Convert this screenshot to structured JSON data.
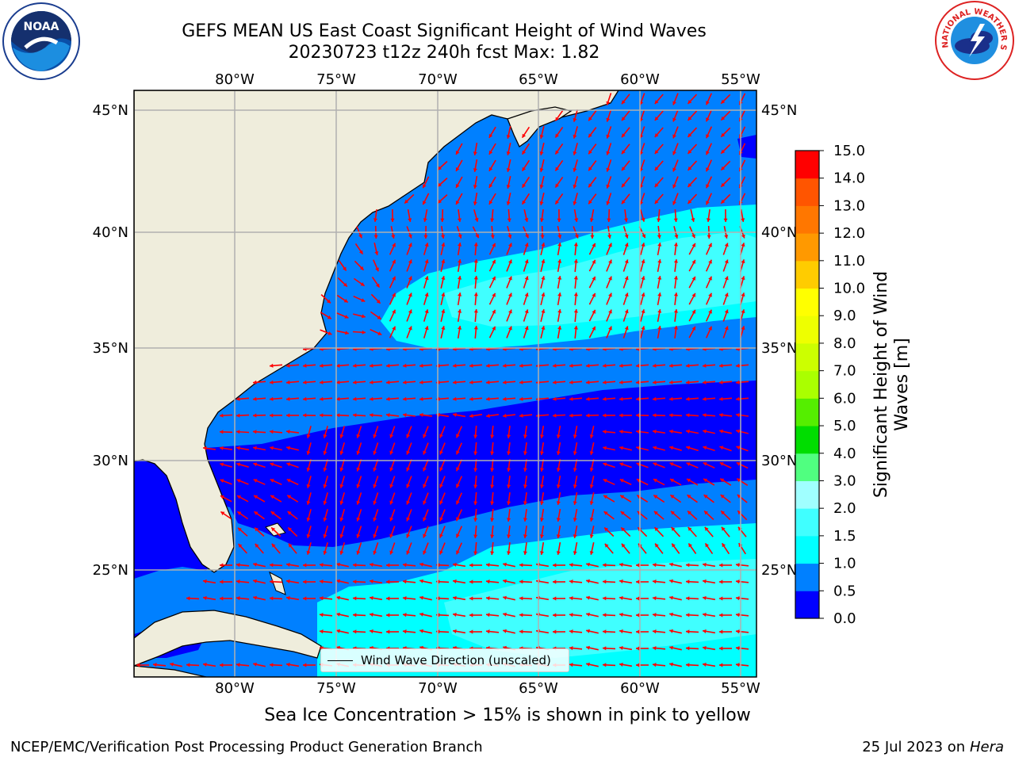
{
  "header": {
    "title_line1": "GEFS MEAN US East Coast Significant Height of Wind Waves",
    "title_line2": "20230723 t12z 240h fcst   Max: 1.82"
  },
  "logos": {
    "left": "noaa-logo",
    "left_text": "NOAA",
    "right": "nws-logo",
    "right_text": "NATIONAL WEATHER SERVICE"
  },
  "map": {
    "lon_labels": [
      "80°W",
      "75°W",
      "70°W",
      "65°W",
      "60°W",
      "55°W"
    ],
    "lat_labels": [
      "45°N",
      "40°N",
      "35°N",
      "30°N",
      "25°N"
    ],
    "legend_label": "Wind Wave Direction (unscaled)",
    "arrow_color": "#ff0000",
    "land_color": "#efeddc"
  },
  "colorbar": {
    "label": "Significant Height of Wind Waves [m]",
    "ticks": [
      "0.0",
      "0.5",
      "1.0",
      "1.5",
      "2.0",
      "3.0",
      "4.0",
      "5.0",
      "6.0",
      "7.0",
      "8.0",
      "9.0",
      "10.0",
      "11.0",
      "12.0",
      "13.0",
      "14.0",
      "15.0"
    ],
    "colors": [
      "#0000ff",
      "#0080ff",
      "#00ffff",
      "#40ffff",
      "#a0ffff",
      "#50ff80",
      "#00dd00",
      "#55ee00",
      "#aaff00",
      "#ccff00",
      "#eeff00",
      "#ffff00",
      "#ffcc00",
      "#ff9900",
      "#ff7700",
      "#ff5500",
      "#ff0000"
    ]
  },
  "note": "Sea Ice Concentration > 15% is shown in pink to yellow",
  "footer": {
    "left": "NCEP/EMC/Verification Post Processing Product Generation Branch",
    "right_date": "25 Jul 2023 on ",
    "right_machine": "Hera"
  }
}
